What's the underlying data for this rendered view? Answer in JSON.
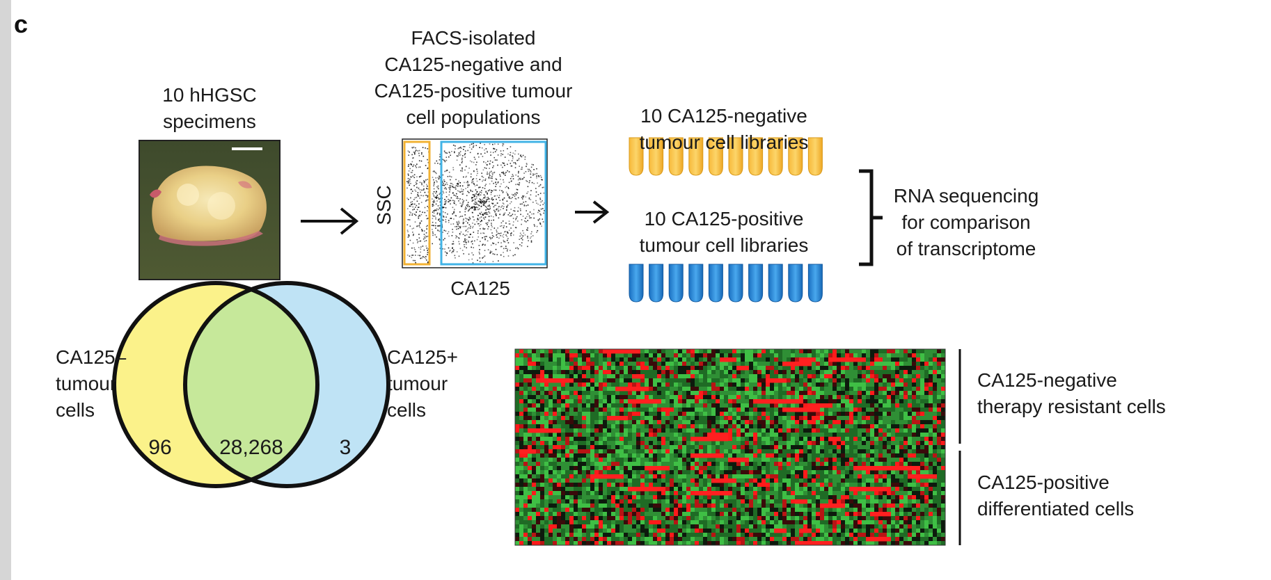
{
  "panel_letter": "c",
  "specimen": {
    "label_line1": "10 hHGSC",
    "label_line2": "specimens"
  },
  "facs": {
    "title_line1": "FACS-isolated",
    "title_line2": "CA125-negative and",
    "title_line3": "CA125-positive tumour",
    "title_line4": "cell populations",
    "y_axis": "SSC",
    "x_axis": "CA125",
    "gate_negative_color": "#f2b233",
    "gate_positive_color": "#41b3e6"
  },
  "libraries": {
    "negative_line1": "10 CA125-negative",
    "negative_line2": "tumour cell libraries",
    "positive_line1": "10 CA125-positive",
    "positive_line2": "tumour cell libraries",
    "negative_count": 10,
    "positive_count": 10,
    "negative_color": "#f5b52e",
    "positive_color": "#1f7ccc"
  },
  "rna": {
    "line1": "RNA sequencing",
    "line2": "for comparison",
    "line3": "of transcriptome"
  },
  "venn": {
    "left_line1": "CA125–",
    "left_line2": "tumour",
    "left_line3": "cells",
    "right_line1": "CA125+",
    "right_line2": "tumour",
    "right_line3": "cells",
    "only_negative": "96",
    "shared": "28,268",
    "only_positive": "3",
    "left_color": "#fbf28a",
    "right_color": "#bfe3f5",
    "overlap_color": "#c6e89a"
  },
  "heatmap": {
    "group_top_line1": "CA125-negative",
    "group_top_line2": "therapy resistant cells",
    "group_bottom_line1": "CA125-positive",
    "group_bottom_line2": "differentiated cells"
  }
}
